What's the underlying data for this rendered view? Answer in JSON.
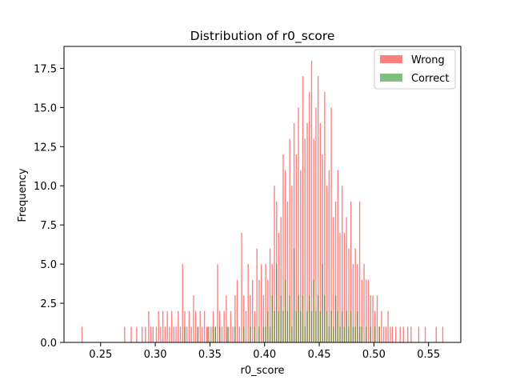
{
  "chart_data": {
    "type": "bar",
    "title": "Distribution of r0_score",
    "xlabel": "r0_score",
    "ylabel": "Frequency",
    "xlim": [
      0.2165,
      0.5795
    ],
    "ylim": [
      0,
      18.9
    ],
    "x_ticks": [
      0.25,
      0.3,
      0.35,
      0.4,
      0.45,
      0.5,
      0.55
    ],
    "y_ticks": [
      0.0,
      2.5,
      5.0,
      7.5,
      10.0,
      12.5,
      15.0,
      17.5
    ],
    "bin_width": 0.001,
    "legend_position": "top-right",
    "series": [
      {
        "name": "Wrong",
        "color": "#ff0000",
        "alpha": 0.5,
        "bins": [
          [
            0.233,
            1
          ],
          [
            0.272,
            1
          ],
          [
            0.278,
            1
          ],
          [
            0.283,
            1
          ],
          [
            0.288,
            1
          ],
          [
            0.291,
            1
          ],
          [
            0.294,
            2
          ],
          [
            0.296,
            1
          ],
          [
            0.298,
            1
          ],
          [
            0.301,
            1
          ],
          [
            0.303,
            2
          ],
          [
            0.305,
            1
          ],
          [
            0.307,
            2
          ],
          [
            0.309,
            1
          ],
          [
            0.311,
            2
          ],
          [
            0.313,
            1
          ],
          [
            0.315,
            2
          ],
          [
            0.317,
            1
          ],
          [
            0.319,
            1
          ],
          [
            0.321,
            2
          ],
          [
            0.323,
            1
          ],
          [
            0.325,
            5
          ],
          [
            0.327,
            2
          ],
          [
            0.329,
            1
          ],
          [
            0.331,
            2
          ],
          [
            0.333,
            1
          ],
          [
            0.335,
            3
          ],
          [
            0.337,
            2
          ],
          [
            0.339,
            1
          ],
          [
            0.341,
            2
          ],
          [
            0.343,
            1
          ],
          [
            0.345,
            2
          ],
          [
            0.347,
            1
          ],
          [
            0.349,
            1
          ],
          [
            0.351,
            1
          ],
          [
            0.353,
            2
          ],
          [
            0.355,
            1
          ],
          [
            0.357,
            5
          ],
          [
            0.359,
            2
          ],
          [
            0.361,
            1
          ],
          [
            0.363,
            2
          ],
          [
            0.365,
            3
          ],
          [
            0.367,
            1
          ],
          [
            0.369,
            2
          ],
          [
            0.371,
            1
          ],
          [
            0.373,
            3
          ],
          [
            0.375,
            4
          ],
          [
            0.377,
            1
          ],
          [
            0.379,
            7
          ],
          [
            0.381,
            3
          ],
          [
            0.383,
            2
          ],
          [
            0.385,
            5
          ],
          [
            0.387,
            3
          ],
          [
            0.389,
            4
          ],
          [
            0.391,
            2
          ],
          [
            0.393,
            6
          ],
          [
            0.395,
            4
          ],
          [
            0.397,
            5
          ],
          [
            0.399,
            3
          ],
          [
            0.401,
            5
          ],
          [
            0.403,
            4
          ],
          [
            0.405,
            6
          ],
          [
            0.407,
            5
          ],
          [
            0.409,
            10
          ],
          [
            0.411,
            9
          ],
          [
            0.413,
            7
          ],
          [
            0.415,
            8
          ],
          [
            0.417,
            12
          ],
          [
            0.419,
            11
          ],
          [
            0.421,
            9
          ],
          [
            0.423,
            13
          ],
          [
            0.425,
            10
          ],
          [
            0.427,
            14
          ],
          [
            0.429,
            12
          ],
          [
            0.431,
            15
          ],
          [
            0.433,
            11
          ],
          [
            0.435,
            17
          ],
          [
            0.437,
            13
          ],
          [
            0.439,
            14
          ],
          [
            0.441,
            16
          ],
          [
            0.443,
            18
          ],
          [
            0.445,
            13
          ],
          [
            0.447,
            15
          ],
          [
            0.449,
            17
          ],
          [
            0.451,
            14
          ],
          [
            0.453,
            12
          ],
          [
            0.455,
            16
          ],
          [
            0.457,
            10
          ],
          [
            0.459,
            11
          ],
          [
            0.461,
            15
          ],
          [
            0.463,
            8
          ],
          [
            0.465,
            9
          ],
          [
            0.467,
            11
          ],
          [
            0.469,
            7
          ],
          [
            0.471,
            10
          ],
          [
            0.473,
            7
          ],
          [
            0.475,
            8
          ],
          [
            0.477,
            6
          ],
          [
            0.479,
            9
          ],
          [
            0.481,
            5
          ],
          [
            0.483,
            6
          ],
          [
            0.485,
            5
          ],
          [
            0.487,
            9
          ],
          [
            0.489,
            4
          ],
          [
            0.491,
            5
          ],
          [
            0.493,
            4
          ],
          [
            0.495,
            4
          ],
          [
            0.497,
            3
          ],
          [
            0.499,
            3
          ],
          [
            0.501,
            2
          ],
          [
            0.503,
            3
          ],
          [
            0.505,
            1
          ],
          [
            0.507,
            2
          ],
          [
            0.509,
            1
          ],
          [
            0.511,
            1
          ],
          [
            0.513,
            2
          ],
          [
            0.515,
            1
          ],
          [
            0.517,
            1
          ],
          [
            0.52,
            1
          ],
          [
            0.524,
            1
          ],
          [
            0.527,
            1
          ],
          [
            0.531,
            1
          ],
          [
            0.534,
            1
          ],
          [
            0.541,
            1
          ],
          [
            0.547,
            1
          ],
          [
            0.557,
            1
          ],
          [
            0.563,
            1
          ]
        ]
      },
      {
        "name": "Correct",
        "color": "#008000",
        "alpha": 0.5,
        "bins": [
          [
            0.327,
            1
          ],
          [
            0.339,
            1
          ],
          [
            0.348,
            1
          ],
          [
            0.353,
            1
          ],
          [
            0.355,
            1
          ],
          [
            0.359,
            1
          ],
          [
            0.366,
            1
          ],
          [
            0.373,
            1
          ],
          [
            0.381,
            1
          ],
          [
            0.387,
            1
          ],
          [
            0.391,
            1
          ],
          [
            0.395,
            1
          ],
          [
            0.399,
            1
          ],
          [
            0.401,
            1
          ],
          [
            0.403,
            2
          ],
          [
            0.405,
            1
          ],
          [
            0.407,
            3
          ],
          [
            0.409,
            2
          ],
          [
            0.411,
            5
          ],
          [
            0.413,
            2
          ],
          [
            0.415,
            3
          ],
          [
            0.417,
            2
          ],
          [
            0.419,
            4
          ],
          [
            0.421,
            2
          ],
          [
            0.423,
            3
          ],
          [
            0.425,
            1
          ],
          [
            0.427,
            6
          ],
          [
            0.429,
            2
          ],
          [
            0.431,
            3
          ],
          [
            0.433,
            2
          ],
          [
            0.435,
            3
          ],
          [
            0.437,
            1
          ],
          [
            0.439,
            2
          ],
          [
            0.441,
            3
          ],
          [
            0.443,
            2
          ],
          [
            0.445,
            4
          ],
          [
            0.447,
            2
          ],
          [
            0.449,
            3
          ],
          [
            0.451,
            2
          ],
          [
            0.453,
            5
          ],
          [
            0.455,
            3
          ],
          [
            0.457,
            2
          ],
          [
            0.459,
            1
          ],
          [
            0.461,
            2
          ],
          [
            0.463,
            1
          ],
          [
            0.465,
            3
          ],
          [
            0.467,
            2
          ],
          [
            0.469,
            1
          ],
          [
            0.471,
            2
          ],
          [
            0.473,
            1
          ],
          [
            0.475,
            2
          ],
          [
            0.477,
            1
          ],
          [
            0.479,
            2
          ],
          [
            0.481,
            1
          ],
          [
            0.483,
            1
          ],
          [
            0.485,
            2
          ],
          [
            0.487,
            1
          ],
          [
            0.489,
            1
          ],
          [
            0.493,
            1
          ],
          [
            0.497,
            1
          ],
          [
            0.501,
            1
          ],
          [
            0.505,
            1
          ]
        ]
      }
    ]
  }
}
